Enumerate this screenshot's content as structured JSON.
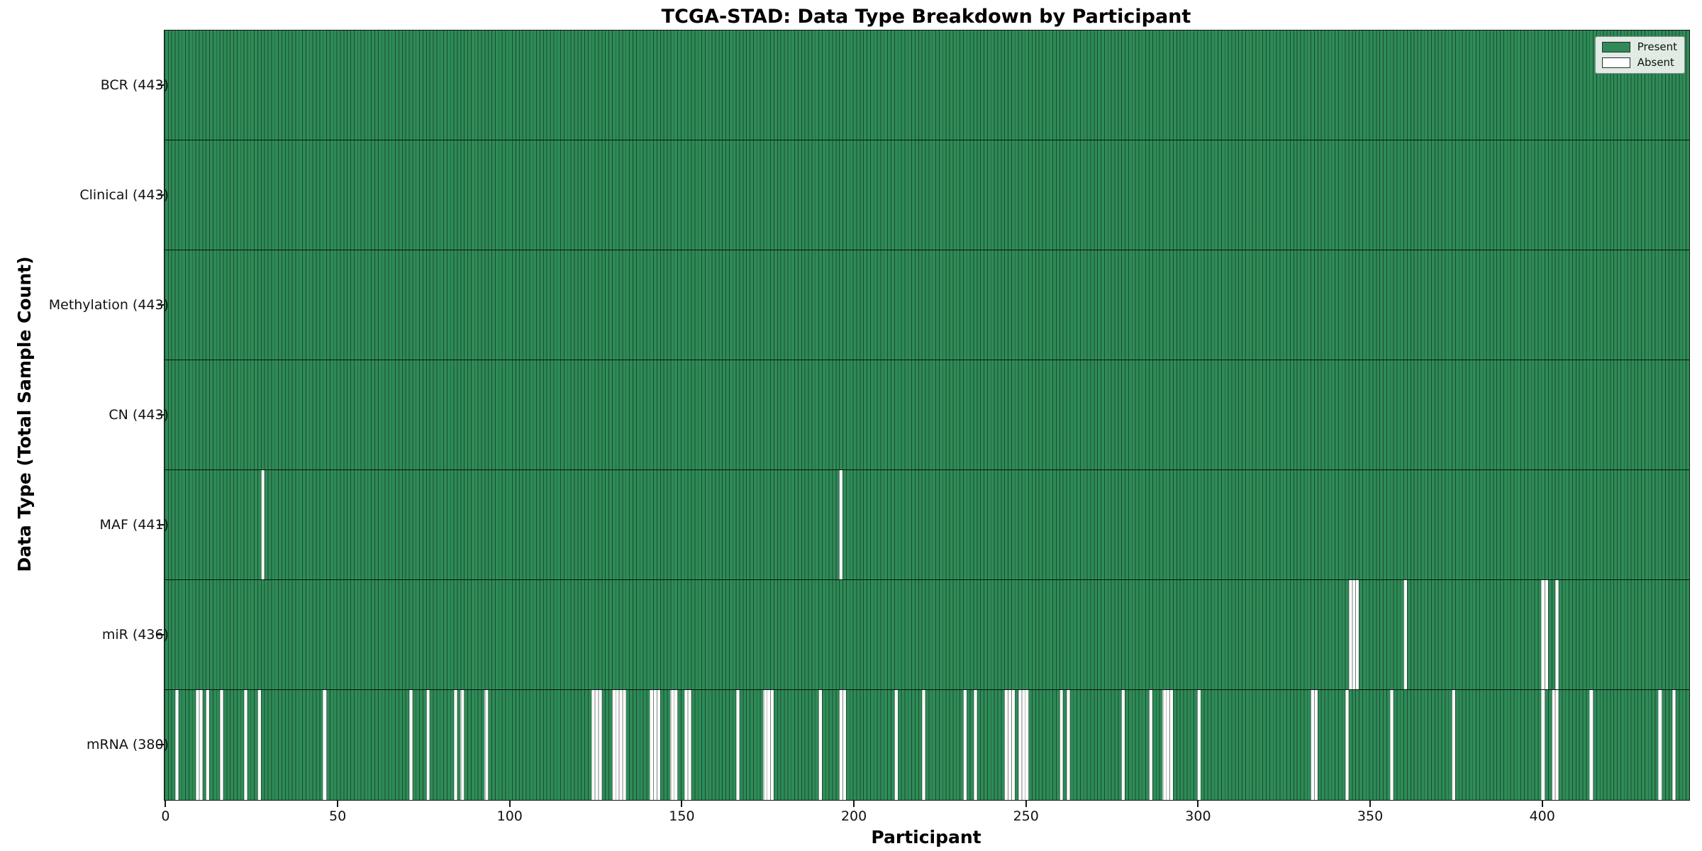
{
  "figure": {
    "title": "TCGA-STAD: Data Type Breakdown by Participant",
    "xlabel": "Participant",
    "ylabel": "Data Type (Total Sample Count)"
  },
  "legend": {
    "position": "upper right",
    "items": [
      {
        "label": "Present",
        "color": "#2e8b57"
      },
      {
        "label": "Absent",
        "color": "#ffffff"
      }
    ]
  },
  "chart_data": {
    "type": "heatmap",
    "title": "TCGA-STAD: Data Type Breakdown by Participant",
    "xlabel": "Participant",
    "ylabel": "Data Type (Total Sample Count)",
    "legend_entries": [
      "Present",
      "Absent"
    ],
    "present_color": "#2e8b57",
    "absent_color": "#ffffff",
    "cell_edge_color": "rgba(10,25,15,0.55)",
    "n_participants": 443,
    "x_range": [
      0,
      443
    ],
    "xticks": [
      0,
      50,
      100,
      150,
      200,
      250,
      300,
      350,
      400
    ],
    "grid": false,
    "rows": [
      {
        "name": "BCR",
        "label": "BCR (443)",
        "total_present": 443,
        "absent_participants": []
      },
      {
        "name": "Clinical",
        "label": "Clinical (443)",
        "total_present": 443,
        "absent_participants": []
      },
      {
        "name": "Methylation",
        "label": "Methylation (443)",
        "total_present": 443,
        "absent_participants": []
      },
      {
        "name": "CN",
        "label": "CN (443)",
        "total_present": 443,
        "absent_participants": []
      },
      {
        "name": "MAF",
        "label": "MAF (441)",
        "total_present": 441,
        "absent_participants": [
          28,
          196
        ]
      },
      {
        "name": "miR",
        "label": "miR (436)",
        "total_present": 436,
        "absent_participants": [
          344,
          345,
          346,
          360,
          400,
          401,
          404
        ]
      },
      {
        "name": "mRNA",
        "label": "mRNA (380)",
        "total_present": 380,
        "absent_participants": [
          3,
          9,
          10,
          12,
          16,
          23,
          27,
          46,
          71,
          76,
          84,
          86,
          93,
          124,
          125,
          126,
          130,
          131,
          132,
          133,
          141,
          142,
          143,
          147,
          148,
          151,
          152,
          166,
          174,
          175,
          176,
          190,
          196,
          197,
          212,
          220,
          232,
          235,
          244,
          245,
          246,
          248,
          249,
          250,
          260,
          262,
          278,
          286,
          290,
          291,
          292,
          300,
          333,
          334,
          343,
          356,
          374,
          400,
          403,
          404,
          414,
          434,
          438
        ]
      }
    ]
  }
}
